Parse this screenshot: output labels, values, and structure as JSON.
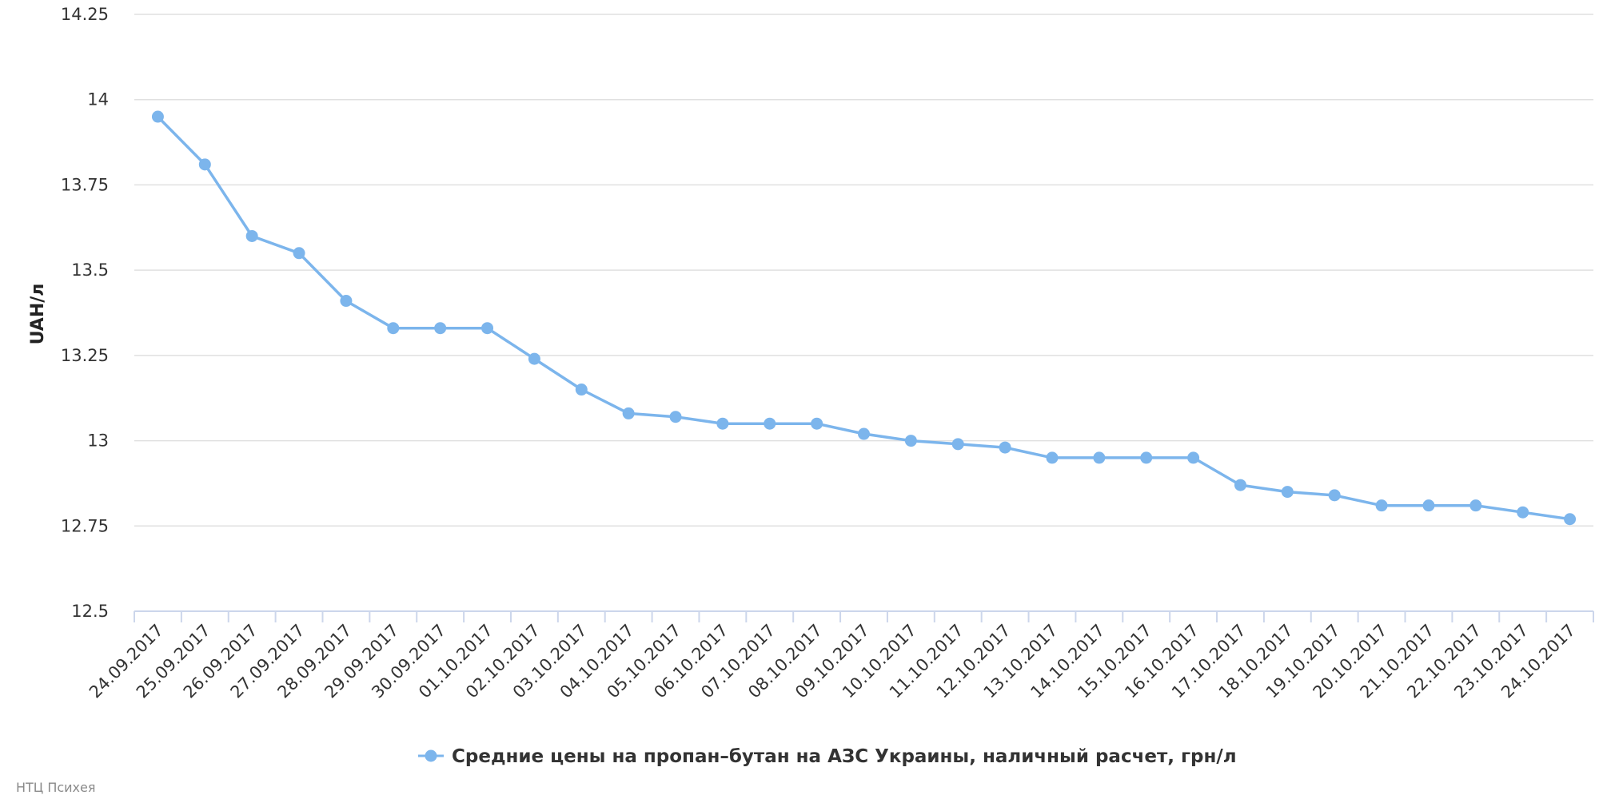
{
  "chart_data": {
    "type": "line",
    "ylabel": "UAH/л",
    "xlabel": "",
    "ylim": [
      12.5,
      14.25
    ],
    "y_ticks": [
      12.5,
      12.75,
      13,
      13.25,
      13.5,
      13.75,
      14,
      14.25
    ],
    "y_tick_labels": [
      "12.5",
      "12.75",
      "13",
      "13.25",
      "13.5",
      "13.75",
      "14",
      "14.25"
    ],
    "grid": true,
    "legend_position": "bottom-center",
    "categories": [
      "24.09.2017",
      "25.09.2017",
      "26.09.2017",
      "27.09.2017",
      "28.09.2017",
      "29.09.2017",
      "30.09.2017",
      "01.10.2017",
      "02.10.2017",
      "03.10.2017",
      "04.10.2017",
      "05.10.2017",
      "06.10.2017",
      "07.10.2017",
      "08.10.2017",
      "09.10.2017",
      "10.10.2017",
      "11.10.2017",
      "12.10.2017",
      "13.10.2017",
      "14.10.2017",
      "15.10.2017",
      "16.10.2017",
      "17.10.2017",
      "18.10.2017",
      "19.10.2017",
      "20.10.2017",
      "21.10.2017",
      "22.10.2017",
      "23.10.2017",
      "24.10.2017"
    ],
    "series": [
      {
        "name": "Средние цены на пропан–бутан на АЗС Украины, наличный расчет, грн/л",
        "color": "#7cb5ec",
        "values": [
          13.95,
          13.81,
          13.6,
          13.55,
          13.41,
          13.33,
          13.33,
          13.33,
          13.24,
          13.15,
          13.08,
          13.07,
          13.05,
          13.05,
          13.05,
          13.02,
          13.0,
          12.99,
          12.98,
          12.95,
          12.95,
          12.95,
          12.95,
          12.87,
          12.85,
          12.84,
          12.81,
          12.81,
          12.81,
          12.79,
          12.77
        ]
      }
    ]
  },
  "credit": "НТЦ Психея"
}
